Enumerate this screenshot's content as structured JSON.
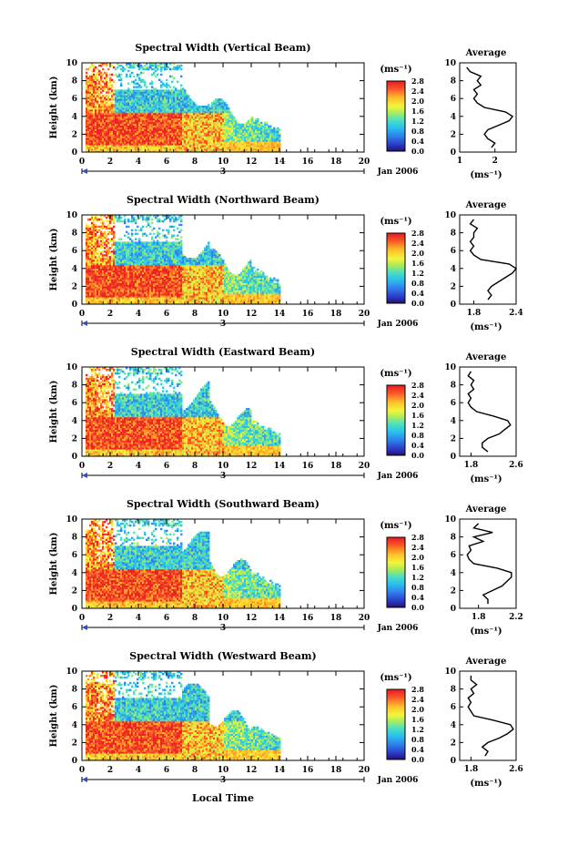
{
  "figure": {
    "xlabel": "Local Time",
    "date_label": "Jan 2006",
    "day_label": "3",
    "cbar_unit": "(ms⁻¹)",
    "avg_title": "Average",
    "avg_xlabel": "(ms⁻¹)"
  },
  "chart_data": [
    {
      "type": "heatmap",
      "title": "Spectral Width (Vertical Beam)",
      "ylabel": "Height (km)",
      "xlim": [
        0,
        20
      ],
      "ylim": [
        0,
        10
      ],
      "xticks": [
        "0",
        "2",
        "4",
        "6",
        "8",
        "10",
        "12",
        "14",
        "16",
        "18",
        "20"
      ],
      "yticks": [
        "0",
        "2",
        "4",
        "6",
        "8",
        "10"
      ],
      "colorbar": {
        "unit": "(ms⁻¹)",
        "range": [
          0,
          2.8
        ],
        "ticks": [
          "0.0",
          "0.4",
          "0.8",
          "1.2",
          "1.6",
          "2.0",
          "2.4",
          "2.8"
        ]
      },
      "average": {
        "title": "Average",
        "xlabel": "(ms⁻¹)",
        "xlim": [
          1,
          2.6
        ],
        "xticks": [
          "1",
          "2"
        ],
        "heights": [
          0.5,
          1,
          1.5,
          2,
          2.5,
          3,
          3.5,
          4,
          4.5,
          5,
          5.5,
          6,
          6.5,
          7,
          7.5,
          8,
          8.5,
          9,
          9.5
        ],
        "values": [
          1.9,
          2.0,
          1.8,
          1.7,
          1.8,
          2.1,
          2.4,
          2.5,
          2.3,
          1.7,
          1.5,
          1.4,
          1.5,
          1.4,
          1.6,
          1.5,
          1.6,
          1.3,
          1.2
        ]
      }
    },
    {
      "type": "heatmap",
      "title": "Spectral Width (Northward Beam)",
      "ylabel": "Height (km)",
      "xlim": [
        0,
        20
      ],
      "ylim": [
        0,
        10
      ],
      "xticks": [
        "0",
        "2",
        "4",
        "6",
        "8",
        "10",
        "12",
        "14",
        "16",
        "18",
        "20"
      ],
      "yticks": [
        "0",
        "2",
        "4",
        "6",
        "8",
        "10"
      ],
      "colorbar": {
        "unit": "(ms⁻¹)",
        "range": [
          0,
          2.8
        ],
        "ticks": [
          "0.0",
          "0.4",
          "0.8",
          "1.2",
          "1.6",
          "2.0",
          "2.4",
          "2.8"
        ]
      },
      "average": {
        "title": "Average",
        "xlabel": "(ms⁻¹)",
        "xlim": [
          1.6,
          2.4
        ],
        "xticks": [
          "1.8",
          "2.4"
        ],
        "heights": [
          0.5,
          1,
          1.5,
          2,
          2.5,
          3,
          3.5,
          4,
          4.5,
          5,
          5.5,
          6,
          6.5,
          7,
          7.5,
          8,
          8.5,
          9,
          9.5
        ],
        "values": [
          2.0,
          2.05,
          2.0,
          2.05,
          2.15,
          2.25,
          2.35,
          2.4,
          2.3,
          1.9,
          1.8,
          1.75,
          1.8,
          1.75,
          1.8,
          1.8,
          1.85,
          1.75,
          1.8
        ]
      }
    },
    {
      "type": "heatmap",
      "title": "Spectral Width (Eastward Beam)",
      "ylabel": "Height (km)",
      "xlim": [
        0,
        20
      ],
      "ylim": [
        0,
        10
      ],
      "xticks": [
        "0",
        "2",
        "4",
        "6",
        "8",
        "10",
        "12",
        "14",
        "16",
        "18",
        "20"
      ],
      "yticks": [
        "0",
        "2",
        "4",
        "6",
        "8",
        "10"
      ],
      "colorbar": {
        "unit": "(ms⁻¹)",
        "range": [
          0,
          2.8
        ],
        "ticks": [
          "0.0",
          "0.4",
          "0.8",
          "1.2",
          "1.6",
          "2.0",
          "2.4",
          "2.8"
        ]
      },
      "average": {
        "title": "Average",
        "xlabel": "(ms⁻¹)",
        "xlim": [
          1.6,
          2.6
        ],
        "xticks": [
          "1.8",
          "2.6"
        ],
        "heights": [
          0.5,
          1,
          1.5,
          2,
          2.5,
          3,
          3.5,
          4,
          4.5,
          5,
          5.5,
          6,
          6.5,
          7,
          7.5,
          8,
          8.5,
          9,
          9.5
        ],
        "values": [
          2.1,
          2.0,
          2.0,
          2.1,
          2.3,
          2.4,
          2.5,
          2.45,
          2.2,
          1.9,
          1.8,
          1.75,
          1.8,
          1.75,
          1.85,
          1.8,
          1.85,
          1.75,
          1.8
        ]
      }
    },
    {
      "type": "heatmap",
      "title": "Spectral Width (Southward Beam)",
      "ylabel": "Height (km)",
      "xlim": [
        0,
        20
      ],
      "ylim": [
        0,
        10
      ],
      "xticks": [
        "0",
        "2",
        "4",
        "6",
        "8",
        "10",
        "12",
        "14",
        "16",
        "18",
        "20"
      ],
      "yticks": [
        "0",
        "2",
        "4",
        "6",
        "8",
        "10"
      ],
      "colorbar": {
        "unit": "(ms⁻¹)",
        "range": [
          0,
          2.8
        ],
        "ticks": [
          "0.0",
          "0.4",
          "0.8",
          "1.2",
          "1.6",
          "2.0",
          "2.4",
          "2.8"
        ]
      },
      "average": {
        "title": "Average",
        "xlabel": "(ms⁻¹)",
        "xlim": [
          1.6,
          2.2
        ],
        "xticks": [
          "1.8",
          "2.2"
        ],
        "heights": [
          0.5,
          1,
          1.5,
          2,
          2.5,
          3,
          3.5,
          4,
          4.5,
          5,
          5.5,
          6,
          6.5,
          7,
          7.5,
          8,
          8.5,
          9,
          9.5
        ],
        "values": [
          1.9,
          1.9,
          1.85,
          1.95,
          2.05,
          2.1,
          2.15,
          2.15,
          2.0,
          1.75,
          1.7,
          1.68,
          1.72,
          1.7,
          1.85,
          1.75,
          1.95,
          1.75,
          1.8
        ]
      }
    },
    {
      "type": "heatmap",
      "title": "Spectral Width (Westward Beam)",
      "ylabel": "Height (km)",
      "xlim": [
        0,
        20
      ],
      "ylim": [
        0,
        10
      ],
      "xticks": [
        "0",
        "2",
        "4",
        "6",
        "8",
        "10",
        "12",
        "14",
        "16",
        "18",
        "20"
      ],
      "yticks": [
        "0",
        "2",
        "4",
        "6",
        "8",
        "10"
      ],
      "colorbar": {
        "unit": "(ms⁻¹)",
        "range": [
          0,
          2.8
        ],
        "ticks": [
          "0.0",
          "0.4",
          "0.8",
          "1.2",
          "1.6",
          "2.0",
          "2.4",
          "2.8"
        ]
      },
      "average": {
        "title": "Average",
        "xlabel": "(ms⁻¹)",
        "xlim": [
          1.6,
          2.6
        ],
        "xticks": [
          "1.8",
          "2.6"
        ],
        "heights": [
          0.5,
          1,
          1.5,
          2,
          2.5,
          3,
          3.5,
          4,
          4.5,
          5,
          5.5,
          6,
          6.5,
          7,
          7.5,
          8,
          8.5,
          9,
          9.5
        ],
        "values": [
          2.05,
          2.1,
          2.0,
          2.1,
          2.3,
          2.45,
          2.55,
          2.5,
          2.2,
          1.85,
          1.8,
          1.75,
          1.8,
          1.75,
          1.85,
          1.8,
          1.9,
          1.8,
          1.8
        ]
      }
    }
  ]
}
